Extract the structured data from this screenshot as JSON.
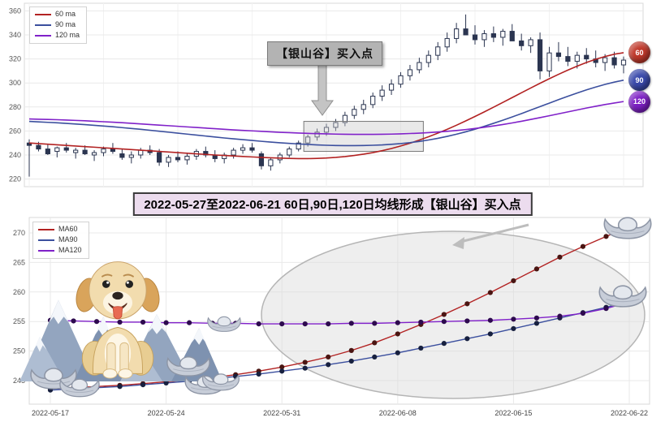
{
  "title_banner": "2022-05-27至2022-06-21 60日,90日,120日均线形成【银山谷】买入点",
  "colors": {
    "grid": "#e9e9e9",
    "candle": "#2b3550",
    "candle_up_fill": "#ffffff",
    "highlight_fill": "#c9c9c9",
    "arrow": "#c4c4c4",
    "ellipse_fill": "#d9d9d9",
    "ellipse_stroke": "#b5b5b5"
  },
  "decorations": {
    "dog": "golden-retriever-puppy",
    "mountains": "snowy-mountains",
    "ingots": "silver-yuanbao-ingots"
  },
  "chart_data": [
    {
      "type": "candlestick",
      "annotation": "【银山谷】买入点",
      "ylim": [
        215,
        365
      ],
      "yticks": [
        220,
        240,
        260,
        280,
        300,
        320,
        340,
        360
      ],
      "grid": true,
      "legend_position": "top-left",
      "badges": [
        {
          "label": "60",
          "color": "#c0392b"
        },
        {
          "label": "90",
          "color": "#3949ab"
        },
        {
          "label": "120",
          "color": "#7d1fc4"
        }
      ],
      "highlight_box": {
        "start_index": 30,
        "end_index": 42,
        "value_top": 268,
        "value_bottom": 243
      },
      "candles": [
        [
          250,
          253,
          222,
          248
        ],
        [
          248,
          251,
          243,
          245
        ],
        [
          245,
          249,
          240,
          241
        ],
        [
          243,
          247,
          238,
          246
        ],
        [
          246,
          250,
          242,
          244
        ],
        [
          242,
          246,
          237,
          244
        ],
        [
          244,
          248,
          240,
          241
        ],
        [
          240,
          244,
          235,
          242
        ],
        [
          242,
          247,
          239,
          245
        ],
        [
          245,
          250,
          241,
          243
        ],
        [
          241,
          245,
          236,
          238
        ],
        [
          238,
          243,
          233,
          240
        ],
        [
          240,
          246,
          237,
          244
        ],
        [
          244,
          248,
          240,
          242
        ],
        [
          242,
          245,
          231,
          234
        ],
        [
          234,
          240,
          230,
          238
        ],
        [
          238,
          243,
          234,
          236
        ],
        [
          236,
          241,
          232,
          239
        ],
        [
          239,
          245,
          236,
          243
        ],
        [
          243,
          247,
          238,
          240
        ],
        [
          240,
          244,
          234,
          237
        ],
        [
          237,
          242,
          233,
          240
        ],
        [
          240,
          246,
          237,
          244
        ],
        [
          244,
          249,
          241,
          246
        ],
        [
          246,
          250,
          242,
          244
        ],
        [
          241,
          243,
          228,
          231
        ],
        [
          231,
          238,
          227,
          236
        ],
        [
          236,
          242,
          233,
          240
        ],
        [
          240,
          247,
          238,
          245
        ],
        [
          245,
          252,
          243,
          250
        ],
        [
          250,
          257,
          247,
          255
        ],
        [
          255,
          262,
          252,
          259
        ],
        [
          259,
          266,
          256,
          263
        ],
        [
          263,
          270,
          260,
          267
        ],
        [
          267,
          276,
          264,
          273
        ],
        [
          273,
          281,
          270,
          278
        ],
        [
          278,
          286,
          274,
          282
        ],
        [
          282,
          292,
          279,
          289
        ],
        [
          289,
          298,
          285,
          294
        ],
        [
          294,
          303,
          290,
          299
        ],
        [
          299,
          309,
          296,
          306
        ],
        [
          306,
          315,
          302,
          311
        ],
        [
          311,
          321,
          308,
          317
        ],
        [
          317,
          327,
          313,
          323
        ],
        [
          323,
          334,
          319,
          330
        ],
        [
          330,
          342,
          326,
          337
        ],
        [
          337,
          350,
          333,
          345
        ],
        [
          345,
          357,
          341,
          340
        ],
        [
          340,
          348,
          332,
          336
        ],
        [
          336,
          344,
          330,
          341
        ],
        [
          341,
          347,
          334,
          338
        ],
        [
          338,
          345,
          331,
          343
        ],
        [
          343,
          349,
          337,
          335
        ],
        [
          335,
          341,
          327,
          331
        ],
        [
          331,
          338,
          325,
          336
        ],
        [
          336,
          342,
          303,
          310
        ],
        [
          310,
          330,
          305,
          325
        ],
        [
          325,
          334,
          318,
          322
        ],
        [
          322,
          330,
          314,
          318
        ],
        [
          318,
          326,
          312,
          323
        ],
        [
          323,
          329,
          316,
          320
        ],
        [
          320,
          327,
          313,
          317
        ],
        [
          317,
          324,
          310,
          321
        ],
        [
          321,
          326,
          312,
          315
        ],
        [
          315,
          322,
          308,
          319
        ]
      ],
      "series": [
        {
          "name": "60 ma",
          "color": "#b22222",
          "values": [
            250,
            249.5,
            249,
            248.5,
            248,
            247.5,
            247,
            246.5,
            246,
            245.5,
            245,
            244.5,
            244,
            243.5,
            243,
            242.5,
            242,
            241.5,
            241,
            240.5,
            240,
            239.6,
            239.2,
            238.8,
            238.4,
            238,
            237.7,
            237.4,
            237.2,
            237,
            237,
            237.2,
            237.5,
            238,
            238.7,
            239.6,
            240.7,
            242,
            243.6,
            245.4,
            247.5,
            249.8,
            252.4,
            255.2,
            258.2,
            261.4,
            264.8,
            268.4,
            272.1,
            275.9,
            279.8,
            283.8,
            287.8,
            291.8,
            295.8,
            299.7,
            303.5,
            307.2,
            310.7,
            314,
            317,
            319.7,
            322,
            323.9,
            325.2
          ]
        },
        {
          "name": "90 ma",
          "color": "#3b4f9e",
          "values": [
            268,
            267.6,
            267.2,
            266.8,
            266.3,
            265.8,
            265.3,
            264.7,
            264.1,
            263.5,
            262.8,
            262.1,
            261.4,
            260.6,
            259.8,
            259,
            258.2,
            257.4,
            256.6,
            255.8,
            255,
            254.2,
            253.5,
            252.8,
            252.1,
            251.4,
            250.8,
            250.2,
            249.7,
            249.2,
            248.8,
            248.4,
            248.1,
            247.9,
            247.8,
            247.8,
            247.9,
            248.1,
            248.4,
            248.9,
            249.5,
            250.3,
            251.3,
            252.5,
            253.9,
            255.5,
            257.3,
            259.3,
            261.5,
            263.9,
            266.4,
            269,
            271.7,
            274.5,
            277.4,
            280.3,
            283.2,
            286.1,
            288.9,
            291.6,
            294.2,
            296.6,
            298.8,
            300.7,
            302.3
          ]
        },
        {
          "name": "120 ma",
          "color": "#8021c9",
          "values": [
            270,
            269.8,
            269.6,
            269.4,
            269.1,
            268.8,
            268.5,
            268.1,
            267.7,
            267.3,
            266.9,
            266.4,
            265.9,
            265.4,
            264.9,
            264.4,
            263.9,
            263.4,
            262.9,
            262.4,
            261.9,
            261.4,
            260.9,
            260.5,
            260.1,
            259.7,
            259.3,
            258.9,
            258.6,
            258.3,
            258,
            257.8,
            257.6,
            257.4,
            257.3,
            257.2,
            257.2,
            257.2,
            257.3,
            257.4,
            257.6,
            257.9,
            258.2,
            258.6,
            259.1,
            259.7,
            260.4,
            261.2,
            262.1,
            263.1,
            264.2,
            265.4,
            266.7,
            268.1,
            269.6,
            271.1,
            272.7,
            274.3,
            275.9,
            277.5,
            279.1,
            280.6,
            282,
            283.3,
            284.5
          ]
        }
      ]
    },
    {
      "type": "line",
      "ylim": [
        242,
        272
      ],
      "yticks": [
        245,
        250,
        255,
        260,
        265,
        270
      ],
      "grid": true,
      "legend_position": "top-left",
      "x": [
        "2022-05-17",
        "2022-05-18",
        "2022-05-19",
        "2022-05-20",
        "2022-05-23",
        "2022-05-24",
        "2022-05-25",
        "2022-05-26",
        "2022-05-27",
        "2022-05-30",
        "2022-05-31",
        "2022-06-01",
        "2022-06-02",
        "2022-06-06",
        "2022-06-07",
        "2022-06-08",
        "2022-06-09",
        "2022-06-10",
        "2022-06-13",
        "2022-06-14",
        "2022-06-15",
        "2022-06-16",
        "2022-06-17",
        "2022-06-20",
        "2022-06-21",
        "2022-06-22"
      ],
      "xticks": [
        "2022-05-17",
        "2022-05-24",
        "2022-05-31",
        "2022-06-08",
        "2022-06-15",
        "2022-06-22"
      ],
      "xtick_indices": [
        0,
        5,
        10,
        15,
        20,
        25
      ],
      "series": [
        {
          "name": "MA60",
          "color": "#b22222",
          "dot_color": "#4a1512",
          "values": [
            243.6,
            243.8,
            244,
            244.2,
            244.5,
            244.8,
            245.1,
            245.5,
            246,
            246.6,
            247.3,
            248.1,
            249,
            250.1,
            251.4,
            252.9,
            254.5,
            256.2,
            258,
            259.9,
            261.9,
            263.9,
            265.9,
            267.7,
            269.4,
            271
          ]
        },
        {
          "name": "MA90",
          "color": "#3b4f9e",
          "dot_color": "#17203f",
          "values": [
            243.4,
            243.6,
            243.8,
            244,
            244.3,
            244.6,
            244.9,
            245.3,
            245.7,
            246.1,
            246.6,
            247.1,
            247.7,
            248.3,
            249,
            249.7,
            250.5,
            251.3,
            252.1,
            252.9,
            253.8,
            254.7,
            255.6,
            256.5,
            257.4,
            258.4
          ]
        },
        {
          "name": "MA120",
          "color": "#8021c9",
          "dot_color": "#2d0a4e",
          "values": [
            255.2,
            255.1,
            255,
            254.9,
            254.9,
            254.8,
            254.8,
            254.7,
            254.7,
            254.6,
            254.6,
            254.6,
            254.6,
            254.7,
            254.7,
            254.8,
            254.9,
            255,
            255.1,
            255.2,
            255.4,
            255.6,
            255.9,
            256.4,
            257.2,
            258.3
          ]
        }
      ]
    }
  ]
}
